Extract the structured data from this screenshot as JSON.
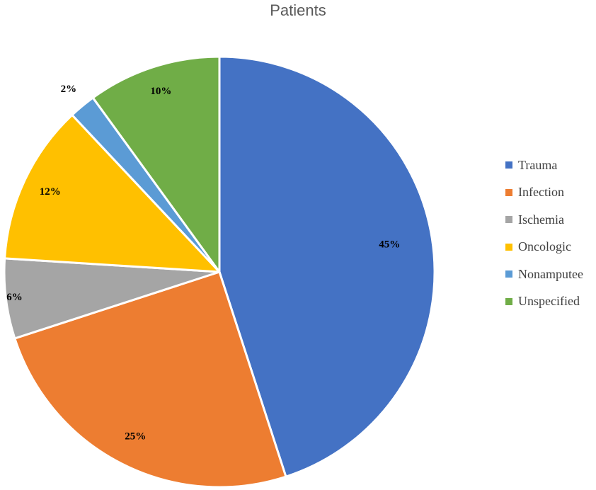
{
  "chart_data": {
    "type": "pie",
    "title": "Patients",
    "categories": [
      "Trauma",
      "Infection",
      "Ischemia",
      "Oncologic",
      "Nonamputee",
      "Unspecified"
    ],
    "values": [
      45,
      25,
      6,
      12,
      2,
      10
    ],
    "labels": [
      "45%",
      "25%",
      "6%",
      "12%",
      "2%",
      "10%"
    ],
    "colors": [
      "#4472C4",
      "#ED7D31",
      "#A5A5A5",
      "#FFC000",
      "#5B9BD5",
      "#70AD47"
    ],
    "legend_position": "right"
  }
}
